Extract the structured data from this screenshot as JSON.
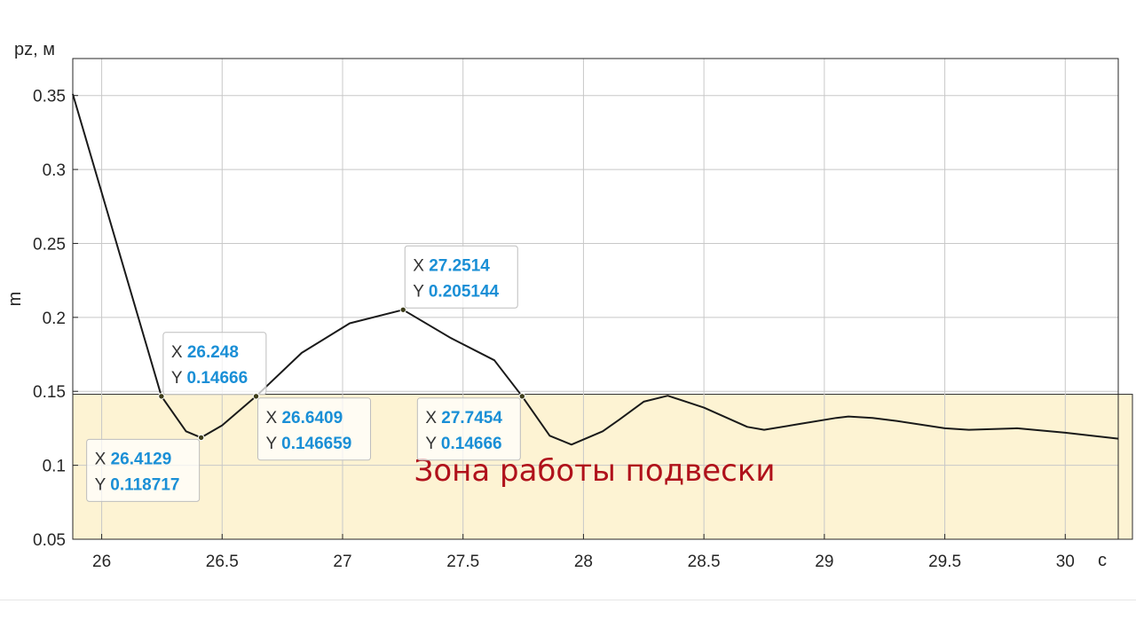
{
  "chart_data": {
    "type": "line",
    "ylabel_top": "pz, м",
    "ylabel": "m",
    "xlabel": "c",
    "xlim": [
      25.88,
      30.22
    ],
    "ylim": [
      0.05,
      0.375
    ],
    "grid": true,
    "x_ticks": [
      26,
      26.5,
      27,
      27.5,
      28,
      28.5,
      29,
      29.5,
      30
    ],
    "x_tick_labels": [
      "26",
      "26.5",
      "27",
      "27.5",
      "28",
      "28.5",
      "29",
      "29.5",
      "30"
    ],
    "y_ticks": [
      0.05,
      0.1,
      0.15,
      0.2,
      0.25,
      0.3,
      0.35
    ],
    "y_tick_labels": [
      "0.05",
      "0.1",
      "0.15",
      "0.2",
      "0.25",
      "0.3",
      "0.35"
    ],
    "line_color": "#1a1a1a",
    "series": [
      {
        "x": [
          25.88,
          26.248,
          26.35,
          26.4129,
          26.5,
          26.6409,
          26.83,
          27.03,
          27.2514,
          27.45,
          27.63,
          27.7454,
          27.86,
          27.95,
          28.08,
          28.15,
          28.25,
          28.35,
          28.5,
          28.68,
          28.75,
          28.9,
          29.05,
          29.1,
          29.2,
          29.3,
          29.5,
          29.6,
          29.8,
          30.0,
          30.22
        ],
        "y": [
          0.351,
          0.14666,
          0.123,
          0.118717,
          0.127,
          0.146659,
          0.176,
          0.196,
          0.205144,
          0.186,
          0.171,
          0.14666,
          0.12,
          0.114,
          0.123,
          0.131,
          0.143,
          0.147,
          0.139,
          0.126,
          0.124,
          0.128,
          0.132,
          0.133,
          0.132,
          0.13,
          0.125,
          0.124,
          0.125,
          0.122,
          0.118
        ]
      }
    ],
    "zone": {
      "label": "Зона работы подвески",
      "y_from": 0.05,
      "y_to": 0.148,
      "fill": "#fdf3d3",
      "border": "#2b2b2b",
      "text_color": "#b0121b"
    },
    "datatips": [
      {
        "x_key": "X",
        "y_key": "Y",
        "x_value": "26.248",
        "y_value": "0.14666",
        "x": 26.248,
        "y": 0.14666,
        "placement": "above-right"
      },
      {
        "x_key": "X",
        "y_key": "Y",
        "x_value": "26.4129",
        "y_value": "0.118717",
        "x": 26.4129,
        "y": 0.118717,
        "placement": "below-left"
      },
      {
        "x_key": "X",
        "y_key": "Y",
        "x_value": "26.6409",
        "y_value": "0.146659",
        "x": 26.6409,
        "y": 0.146659,
        "placement": "below-right"
      },
      {
        "x_key": "X",
        "y_key": "Y",
        "x_value": "27.2514",
        "y_value": "0.205144",
        "x": 27.2514,
        "y": 0.205144,
        "placement": "above-right"
      },
      {
        "x_key": "X",
        "y_key": "Y",
        "x_value": "27.7454",
        "y_value": "0.14666",
        "x": 27.7454,
        "y": 0.14666,
        "placement": "below-left"
      }
    ],
    "datatip_value_color": "#1a8fd6",
    "datatip_marker_color": "#3d3d1a"
  }
}
